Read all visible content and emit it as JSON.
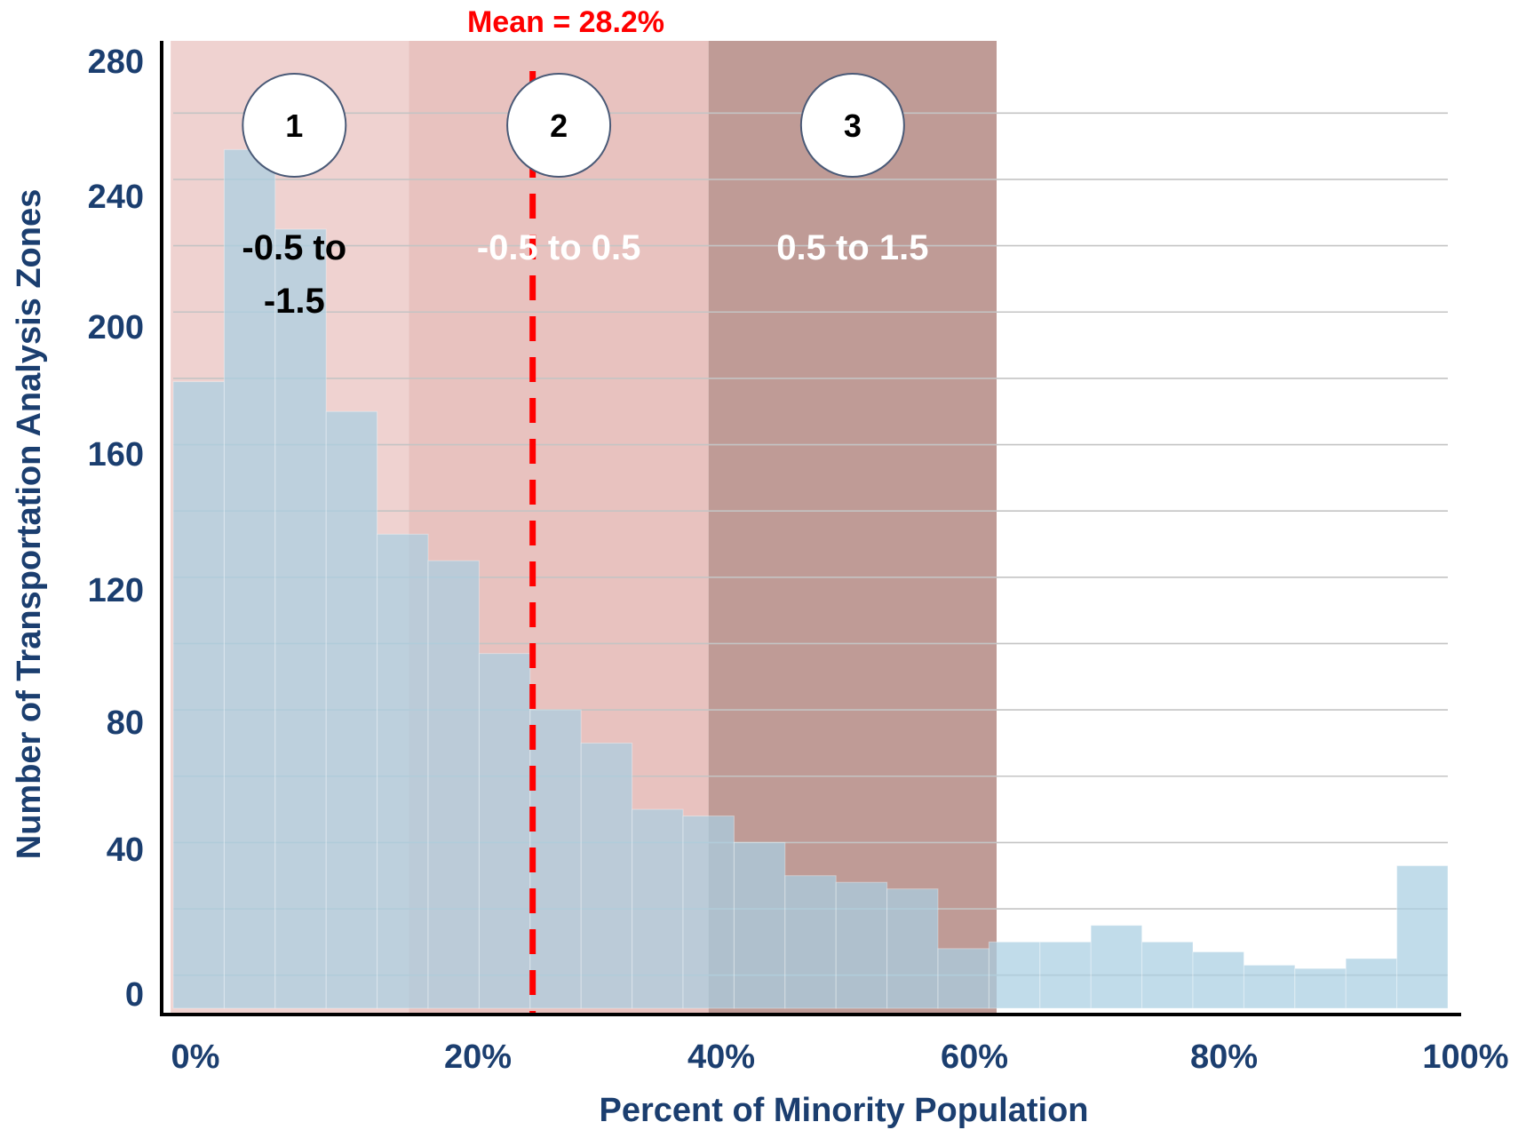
{
  "chart_data": {
    "type": "bar",
    "title": "",
    "xlabel": "Percent of Minority Population",
    "ylabel": "Number of Transportation Analysis Zones",
    "x_ticks": [
      "0%",
      "20%",
      "40%",
      "60%",
      "80%",
      "100%"
    ],
    "y_ticks": [
      "0",
      "40",
      "80",
      "120",
      "160",
      "200",
      "240",
      "280"
    ],
    "ylim": [
      0,
      280
    ],
    "xlim": [
      0,
      100
    ],
    "grid": "horizontal",
    "bin_width": 4,
    "bins": [
      {
        "x0": 0,
        "x1": 4,
        "value": 189
      },
      {
        "x0": 4,
        "x1": 8,
        "value": 259
      },
      {
        "x0": 8,
        "x1": 12,
        "value": 235
      },
      {
        "x0": 12,
        "x1": 16,
        "value": 180
      },
      {
        "x0": 16,
        "x1": 20,
        "value": 143
      },
      {
        "x0": 20,
        "x1": 24,
        "value": 135
      },
      {
        "x0": 24,
        "x1": 28,
        "value": 107
      },
      {
        "x0": 28,
        "x1": 32,
        "value": 90
      },
      {
        "x0": 32,
        "x1": 36,
        "value": 80
      },
      {
        "x0": 36,
        "x1": 40,
        "value": 60
      },
      {
        "x0": 40,
        "x1": 44,
        "value": 58
      },
      {
        "x0": 44,
        "x1": 48,
        "value": 50
      },
      {
        "x0": 48,
        "x1": 52,
        "value": 40
      },
      {
        "x0": 52,
        "x1": 56,
        "value": 38
      },
      {
        "x0": 56,
        "x1": 60,
        "value": 36
      },
      {
        "x0": 60,
        "x1": 64,
        "value": 18
      },
      {
        "x0": 64,
        "x1": 68,
        "value": 20
      },
      {
        "x0": 68,
        "x1": 72,
        "value": 20
      },
      {
        "x0": 72,
        "x1": 76,
        "value": 25
      },
      {
        "x0": 76,
        "x1": 80,
        "value": 20
      },
      {
        "x0": 80,
        "x1": 84,
        "value": 17
      },
      {
        "x0": 84,
        "x1": 88,
        "value": 13
      },
      {
        "x0": 88,
        "x1": 92,
        "value": 12
      },
      {
        "x0": 92,
        "x1": 96,
        "value": 15
      },
      {
        "x0": 96,
        "x1": 100,
        "value": 43
      }
    ],
    "bar_color": "#a9cfe2",
    "mean": {
      "value": 28.2,
      "label": "Mean = 28.2%",
      "color": "#ff0000"
    },
    "zones": [
      {
        "number": "1",
        "range_lines": [
          "-0.5 to",
          "-1.5"
        ],
        "x0": -0.2,
        "x1": 18.5,
        "color": "#efd2d0",
        "text_color": "#000000"
      },
      {
        "number": "2",
        "range_lines": [
          "-0.5 to 0.5"
        ],
        "x0": 18.5,
        "x1": 42.0,
        "color": "#e8c2bf",
        "text_color": "#ffffff"
      },
      {
        "number": "3",
        "range_lines": [
          "0.5 to 1.5"
        ],
        "x0": 42.0,
        "x1": 64.6,
        "color": "#bf9b96",
        "text_color": "#ffffff"
      }
    ]
  }
}
